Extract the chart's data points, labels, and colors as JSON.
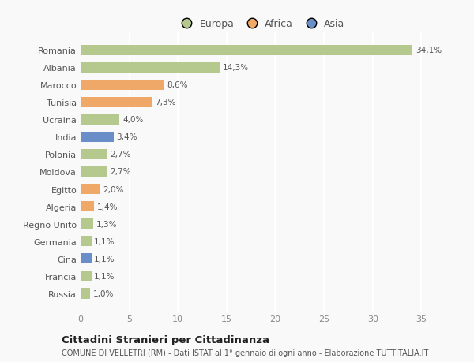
{
  "countries": [
    "Romania",
    "Albania",
    "Marocco",
    "Tunisia",
    "Ucraina",
    "India",
    "Polonia",
    "Moldova",
    "Egitto",
    "Algeria",
    "Regno Unito",
    "Germania",
    "Cina",
    "Francia",
    "Russia"
  ],
  "values": [
    34.1,
    14.3,
    8.6,
    7.3,
    4.0,
    3.4,
    2.7,
    2.7,
    2.0,
    1.4,
    1.3,
    1.1,
    1.1,
    1.1,
    1.0
  ],
  "labels": [
    "34,1%",
    "14,3%",
    "8,6%",
    "7,3%",
    "4,0%",
    "3,4%",
    "2,7%",
    "2,7%",
    "2,0%",
    "1,4%",
    "1,3%",
    "1,1%",
    "1,1%",
    "1,1%",
    "1,0%"
  ],
  "continents": [
    "Europa",
    "Europa",
    "Africa",
    "Africa",
    "Europa",
    "Asia",
    "Europa",
    "Europa",
    "Africa",
    "Africa",
    "Europa",
    "Europa",
    "Asia",
    "Europa",
    "Europa"
  ],
  "colors": {
    "Europa": "#b5c98e",
    "Africa": "#f0a868",
    "Asia": "#6a8fc8"
  },
  "title": "Cittadini Stranieri per Cittadinanza",
  "subtitle": "COMUNE DI VELLETRI (RM) - Dati ISTAT al 1° gennaio di ogni anno - Elaborazione TUTTITALIA.IT",
  "xlim": [
    0,
    37
  ],
  "xticks": [
    0,
    5,
    10,
    15,
    20,
    25,
    30,
    35
  ],
  "background_color": "#f9f9f9",
  "grid_color": "#ffffff",
  "bar_height": 0.6
}
